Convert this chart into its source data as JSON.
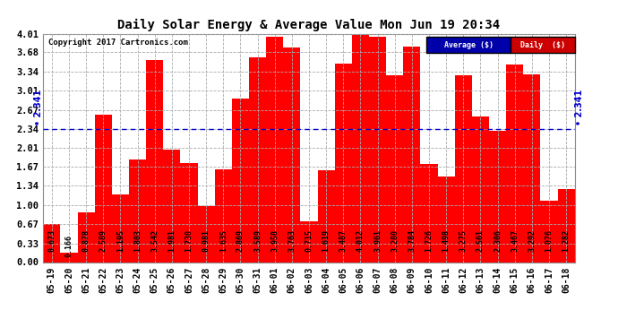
{
  "title": "Daily Solar Energy & Average Value Mon Jun 19 20:34",
  "copyright": "Copyright 2017 Cartronics.com",
  "average_value": 2.341,
  "bar_color": "#ff0000",
  "average_line_color": "#0000cc",
  "background_color": "#ffffff",
  "grid_color": "#aaaaaa",
  "categories": [
    "05-19",
    "05-20",
    "05-21",
    "05-22",
    "05-23",
    "05-24",
    "05-25",
    "05-26",
    "05-27",
    "05-28",
    "05-29",
    "05-30",
    "05-31",
    "06-01",
    "06-02",
    "06-03",
    "06-04",
    "06-05",
    "06-06",
    "06-07",
    "06-08",
    "06-09",
    "06-10",
    "06-11",
    "06-12",
    "06-13",
    "06-14",
    "06-15",
    "06-16",
    "06-17",
    "06-18"
  ],
  "values": [
    0.673,
    0.166,
    0.878,
    2.589,
    1.195,
    1.803,
    3.542,
    1.981,
    1.73,
    0.981,
    1.635,
    2.869,
    3.589,
    3.958,
    3.763,
    0.715,
    1.619,
    3.487,
    4.012,
    3.961,
    3.28,
    3.784,
    1.726,
    1.498,
    3.275,
    2.561,
    2.306,
    3.467,
    3.292,
    1.076,
    1.282
  ],
  "ylim": [
    0.0,
    4.01
  ],
  "yticks": [
    0.0,
    0.33,
    0.67,
    1.0,
    1.34,
    1.67,
    2.01,
    2.34,
    2.67,
    3.01,
    3.34,
    3.68,
    4.01
  ],
  "legend_avg_bg": "#0000aa",
  "legend_daily_bg": "#cc0000",
  "legend_avg_label": "Average ($)",
  "legend_daily_label": "Daily  ($)"
}
